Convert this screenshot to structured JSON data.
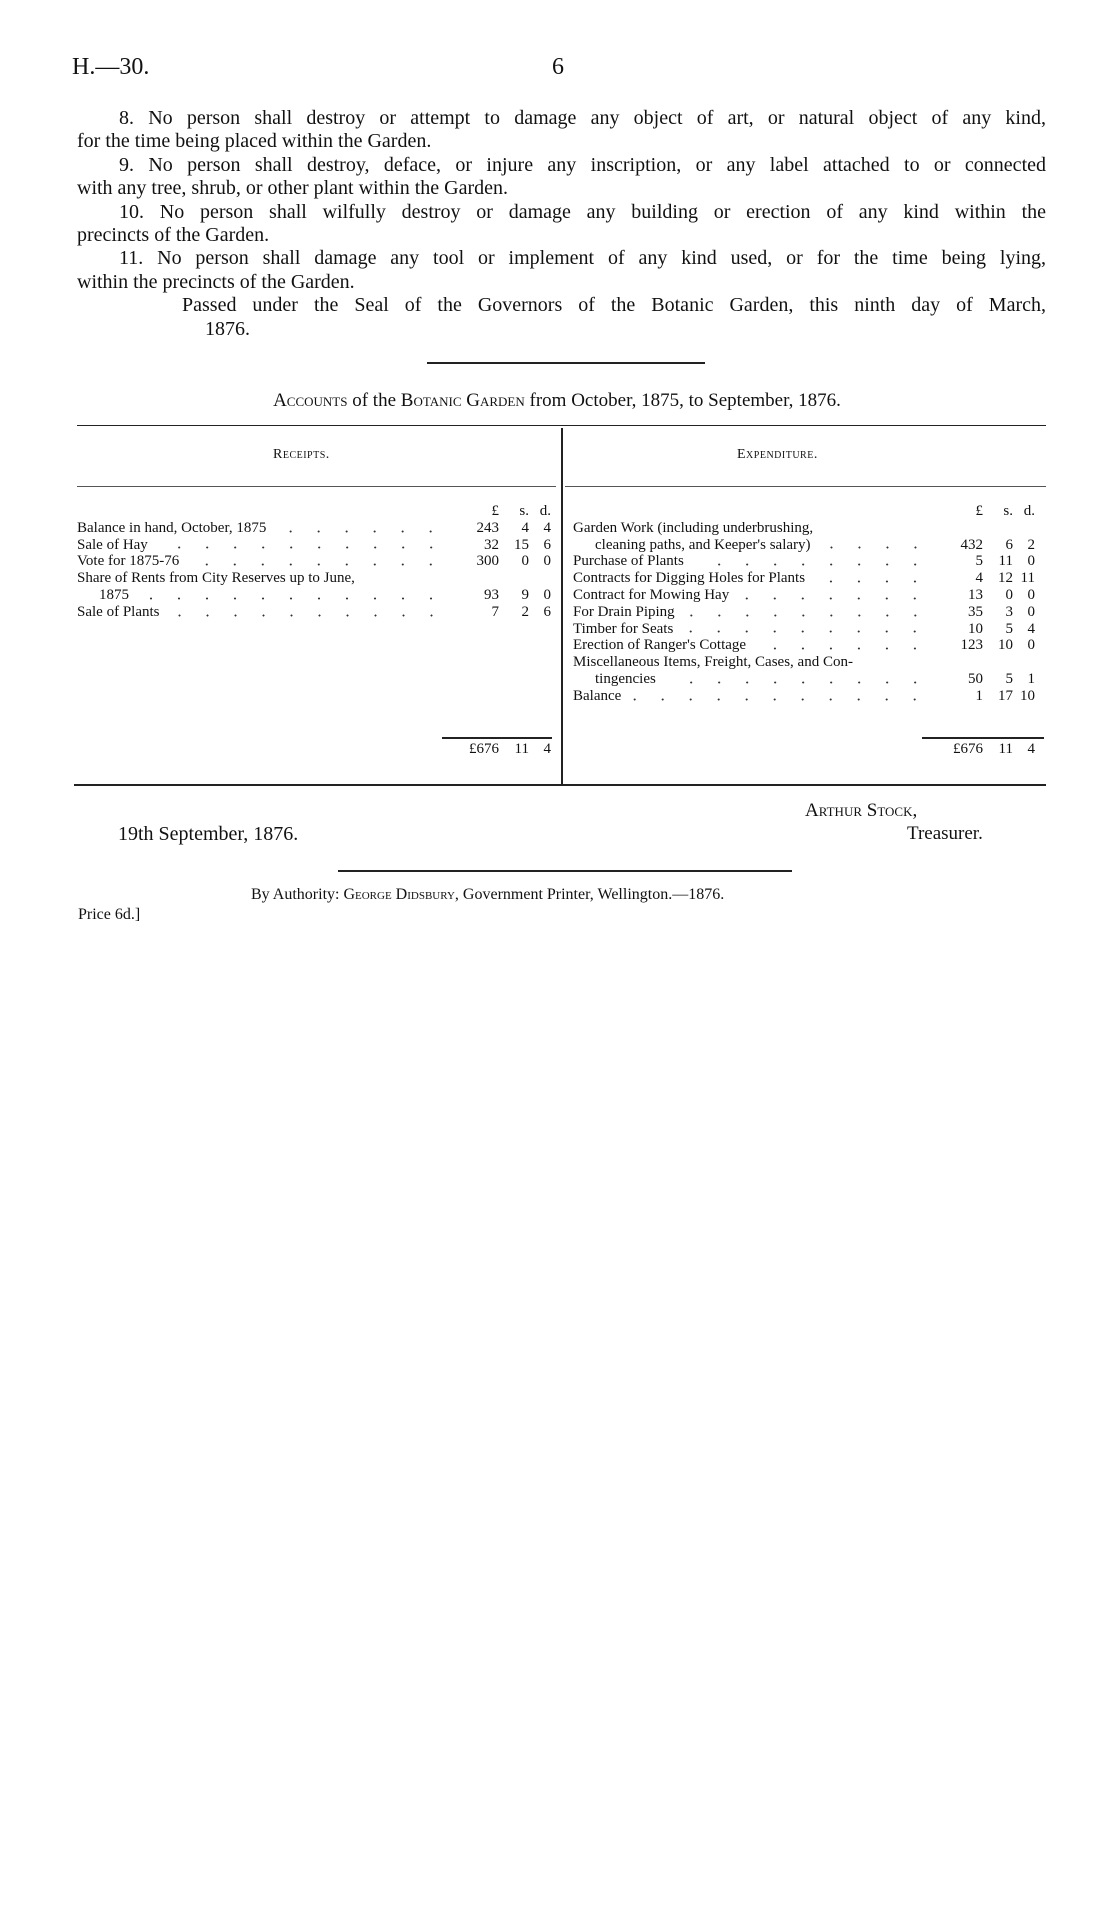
{
  "header": {
    "doc_id": "H.—30.",
    "page_number": "6"
  },
  "rules": [
    {
      "lines": [
        "8. No person shall destroy or attempt to damage any object of art, or natural object of any kind,",
        "for the time being placed within the Garden."
      ]
    },
    {
      "lines": [
        "9. No person shall destroy, deface, or injure any inscription, or any label attached to or connected",
        "with any tree, shrub, or other plant within the Garden."
      ]
    },
    {
      "lines": [
        "10. No person shall wilfully destroy or damage any building or erection of any kind within the",
        "precincts of the Garden."
      ]
    },
    {
      "lines": [
        "11. No person shall damage any tool or implement of any kind used, or for the time being lying,",
        "within the precincts of the Garden."
      ]
    }
  ],
  "passed": {
    "lines": [
      "Passed under the Seal of the Governors of the Botanic Garden, this ninth day of March,",
      "1876."
    ]
  },
  "accounts": {
    "title_prefix": "Accounts",
    "title_mid1": " of the ",
    "title_garden": "Botanic Garden",
    "title_suffix": " from October, 1875, to September, 1876.",
    "currency_headers": [
      "£",
      "s.",
      "d."
    ],
    "receipts": {
      "heading": "Receipts.",
      "items": [
        {
          "label": "Balance in hand, October, 1875",
          "l": "243",
          "s": "4",
          "d": "4"
        },
        {
          "label": "Sale of Hay",
          "l": "32",
          "s": "15",
          "d": "6"
        },
        {
          "label": "Vote for 1875-76",
          "l": "300",
          "s": "0",
          "d": "0"
        },
        {
          "label_first": "Share of Rents from City Reserves up to June,",
          "label": "1875",
          "l": "93",
          "s": "9",
          "d": "0"
        },
        {
          "label": "Sale of Plants",
          "l": "7",
          "s": "2",
          "d": "6"
        }
      ],
      "total": {
        "l": "£676",
        "s": "11",
        "d": "4"
      }
    },
    "expenditure": {
      "heading": "Expenditure.",
      "items": [
        {
          "label_first": "Garden Work (including underbrushing,",
          "label": "cleaning paths, and Keeper's salary)",
          "l": "432",
          "s": "6",
          "d": "2"
        },
        {
          "label": "Purchase of Plants",
          "l": "5",
          "s": "11",
          "d": "0"
        },
        {
          "label": "Contracts for Digging Holes for Plants",
          "l": "4",
          "s": "12",
          "d": "11"
        },
        {
          "label": "Contract for Mowing Hay",
          "l": "13",
          "s": "0",
          "d": "0"
        },
        {
          "label": "For Drain Piping",
          "l": "35",
          "s": "3",
          "d": "0"
        },
        {
          "label": "Timber for Seats",
          "l": "10",
          "s": "5",
          "d": "4"
        },
        {
          "label": "Erection of Ranger's Cottage",
          "l": "123",
          "s": "10",
          "d": "0"
        },
        {
          "label_first": "Miscellaneous Items, Freight, Cases, and Con-",
          "label": "tingencies",
          "l": "50",
          "s": "5",
          "d": "1"
        },
        {
          "label": "Balance",
          "l": "1",
          "s": "17",
          "d": "10"
        }
      ],
      "total": {
        "l": "£676",
        "s": "11",
        "d": "4"
      }
    }
  },
  "signature": {
    "date": "19th September, 1876.",
    "name": "Arthur Stock,",
    "title": "Treasurer."
  },
  "footer": {
    "by_authority": "By Authority: ",
    "printer_name": "George Didsbury",
    "printer_rest": ", Government Printer, Wellington.—1876.",
    "price": "Price 6d.]"
  }
}
